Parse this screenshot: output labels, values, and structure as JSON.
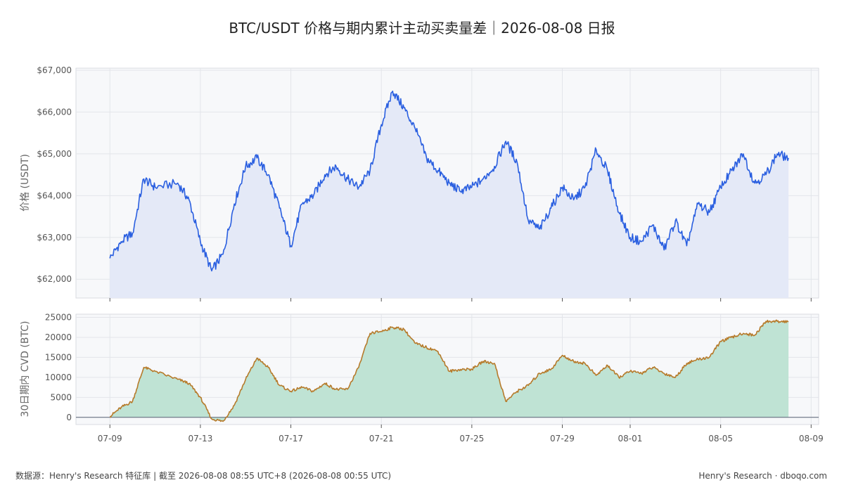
{
  "header": {
    "title": "BTC/USDT 价格与期内累计主动买卖量差｜2026-08-08 日报"
  },
  "footer": {
    "source": "数据源：Henry's Research 特征库 | 截至 2026-08-08 08:55 UTC+8 (2026-08-08 00:55 UTC)",
    "brand": "Henry's Research · dboqo.com"
  },
  "colors": {
    "price_line": "#2a5fe0",
    "price_fill": "#e4e9f7",
    "cvd_line": "#b67a2a",
    "cvd_fill": "#bfe3d4",
    "panel_bg": "#f7f8fa",
    "grid": "#e3e5ea"
  },
  "chart_data": [
    {
      "type": "area",
      "name": "price",
      "ylabel": "价格 (USDT)",
      "ylim": [
        61550,
        67050
      ],
      "yticks": [
        62000,
        63000,
        64000,
        65000,
        66000,
        67000
      ],
      "ytick_labels": [
        "$62,000",
        "$63,000",
        "$64,000",
        "$65,000",
        "$66,000",
        "$67,000"
      ],
      "x_dates": [
        "2026-07-09",
        "2026-07-09 12:00",
        "2026-07-10",
        "2026-07-10 12:00",
        "2026-07-11",
        "2026-07-12",
        "2026-07-12 12:00",
        "2026-07-13",
        "2026-07-13 12:00",
        "2026-07-14",
        "2026-07-14 12:00",
        "2026-07-15",
        "2026-07-15 12:00",
        "2026-07-16",
        "2026-07-16 12:00",
        "2026-07-17",
        "2026-07-17 12:00",
        "2026-07-18",
        "2026-07-18 12:00",
        "2026-07-19",
        "2026-07-19 12:00",
        "2026-07-20",
        "2026-07-20 12:00",
        "2026-07-21",
        "2026-07-21 12:00",
        "2026-07-22",
        "2026-07-22 12:00",
        "2026-07-23",
        "2026-07-23 12:00",
        "2026-07-24",
        "2026-07-24 12:00",
        "2026-07-25",
        "2026-07-25 12:00",
        "2026-07-26",
        "2026-07-26 12:00",
        "2026-07-27",
        "2026-07-27 12:00",
        "2026-07-28",
        "2026-07-28 12:00",
        "2026-07-29",
        "2026-07-29 12:00",
        "2026-07-30",
        "2026-07-30 12:00",
        "2026-07-31",
        "2026-07-31 12:00",
        "2026-08-01",
        "2026-08-01 12:00",
        "2026-08-02",
        "2026-08-02 12:00",
        "2026-08-03",
        "2026-08-03 12:00",
        "2026-08-04",
        "2026-08-04 12:00",
        "2026-08-05",
        "2026-08-05 12:00",
        "2026-08-06",
        "2026-08-06 12:00",
        "2026-08-07",
        "2026-08-07 12:00",
        "2026-08-08"
      ],
      "values": [
        62500,
        62900,
        63100,
        64400,
        64200,
        64300,
        63900,
        62900,
        62200,
        62600,
        63800,
        64700,
        64900,
        64500,
        63700,
        62800,
        63800,
        64000,
        64500,
        64700,
        64400,
        64200,
        64600,
        65700,
        66500,
        66100,
        65600,
        64900,
        64600,
        64300,
        64100,
        64200,
        64400,
        64700,
        65300,
        64800,
        63400,
        63200,
        63700,
        64200,
        63900,
        64200,
        65100,
        64600,
        63600,
        63000,
        62900,
        63300,
        62700,
        63400,
        62800,
        63800,
        63600,
        64200,
        64600,
        65000,
        64300,
        64500,
        65000,
        64900
      ]
    },
    {
      "type": "area",
      "name": "cvd",
      "ylabel": "30日期内 CVD (BTC)",
      "ylim": [
        -1800,
        25800
      ],
      "yticks": [
        0,
        5000,
        10000,
        15000,
        20000,
        25000
      ],
      "ytick_labels": [
        "0",
        "5000",
        "10000",
        "15000",
        "20000",
        "25000"
      ],
      "x_dates": [
        "2026-07-09",
        "2026-07-09 12:00",
        "2026-07-10",
        "2026-07-10 12:00",
        "2026-07-11",
        "2026-07-12",
        "2026-07-12 12:00",
        "2026-07-13",
        "2026-07-13 12:00",
        "2026-07-14",
        "2026-07-14 12:00",
        "2026-07-15",
        "2026-07-15 12:00",
        "2026-07-16",
        "2026-07-16 12:00",
        "2026-07-17",
        "2026-07-17 12:00",
        "2026-07-18",
        "2026-07-18 12:00",
        "2026-07-19",
        "2026-07-19 12:00",
        "2026-07-20",
        "2026-07-20 12:00",
        "2026-07-21",
        "2026-07-21 12:00",
        "2026-07-22",
        "2026-07-22 12:00",
        "2026-07-23",
        "2026-07-23 12:00",
        "2026-07-24",
        "2026-07-24 12:00",
        "2026-07-25",
        "2026-07-25 12:00",
        "2026-07-26",
        "2026-07-26 12:00",
        "2026-07-27",
        "2026-07-27 12:00",
        "2026-07-28",
        "2026-07-28 12:00",
        "2026-07-29",
        "2026-07-29 12:00",
        "2026-07-30",
        "2026-07-30 12:00",
        "2026-07-31",
        "2026-07-31 12:00",
        "2026-08-01",
        "2026-08-01 12:00",
        "2026-08-02",
        "2026-08-02 12:00",
        "2026-08-03",
        "2026-08-03 12:00",
        "2026-08-04",
        "2026-08-04 12:00",
        "2026-08-05",
        "2026-08-05 12:00",
        "2026-08-06",
        "2026-08-06 12:00",
        "2026-08-07",
        "2026-08-07 12:00",
        "2026-08-08"
      ],
      "values": [
        200,
        2500,
        4000,
        12500,
        11500,
        9500,
        8500,
        5000,
        -400,
        -1000,
        3000,
        9500,
        14800,
        12500,
        8000,
        6500,
        7500,
        6500,
        8500,
        7000,
        7000,
        12500,
        21000,
        21500,
        22500,
        22000,
        18500,
        17500,
        16500,
        11500,
        12000,
        12000,
        14000,
        13500,
        4000,
        6500,
        8000,
        11000,
        12000,
        15500,
        14000,
        13500,
        10500,
        13000,
        10000,
        11500,
        11000,
        12500,
        11000,
        10000,
        13500,
        14500,
        15000,
        19000,
        20000,
        21000,
        20500,
        24000,
        24000,
        24000
      ]
    }
  ],
  "x_axis": {
    "ticks": [
      "2026-07-09",
      "2026-07-13",
      "2026-07-17",
      "2026-07-21",
      "2026-07-25",
      "2026-07-29",
      "2026-08-01",
      "2026-08-05",
      "2026-08-09"
    ],
    "labels": [
      "07-09",
      "07-13",
      "07-17",
      "07-21",
      "07-25",
      "07-29",
      "08-01",
      "08-05",
      "08-09"
    ],
    "range": [
      "2026-07-07 12:00",
      "2026-08-09 08:00"
    ]
  }
}
